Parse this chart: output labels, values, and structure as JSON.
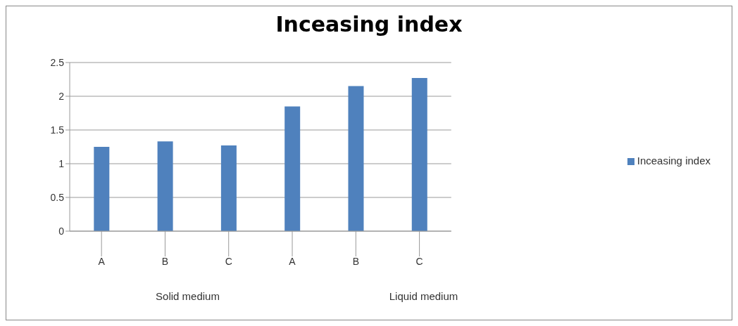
{
  "chart_data": {
    "type": "bar",
    "title": "Inceasing index",
    "categories": [
      "A",
      "B",
      "C",
      "A",
      "B",
      "C"
    ],
    "series": [
      {
        "name": "Inceasing index",
        "color": "#4f81bd",
        "values": [
          1.25,
          1.33,
          1.27,
          1.85,
          2.15,
          2.27
        ]
      }
    ],
    "ylim": [
      0,
      2.5
    ],
    "yticks": [
      0,
      0.5,
      1,
      1.5,
      2,
      2.5
    ],
    "grid": "y",
    "legend": "right",
    "annotations": [
      "Solid medium",
      "Liquid medium"
    ]
  }
}
